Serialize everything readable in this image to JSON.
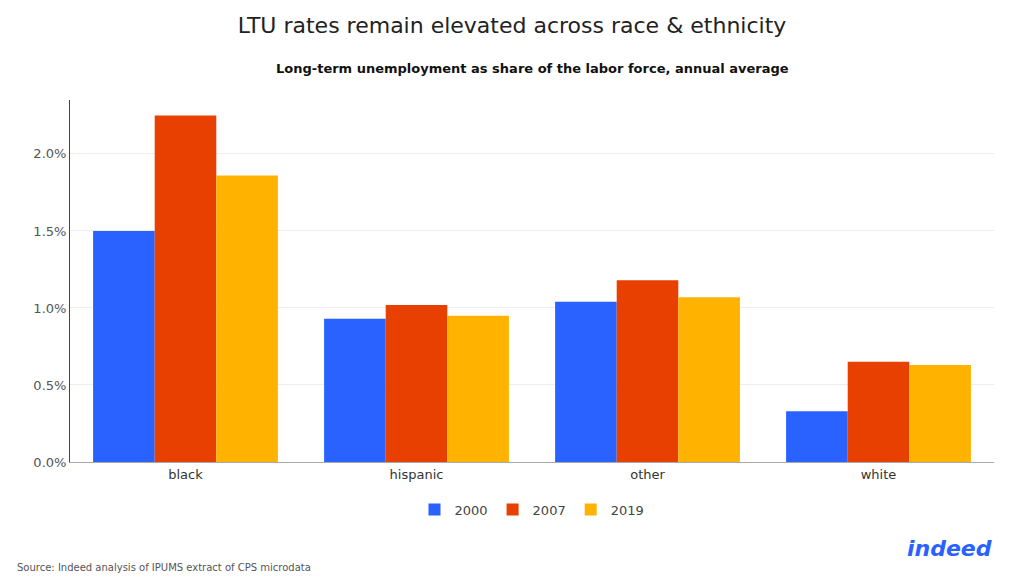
{
  "chart_data": {
    "type": "bar",
    "title": "LTU rates remain elevated across race & ethnicity",
    "subtitle": "Long-term unemployment as share of the labor force, annual average",
    "categories": [
      "black",
      "hispanic",
      "other",
      "white"
    ],
    "series": [
      {
        "name": "2000",
        "color": "#2962FF",
        "values": [
          0.015,
          0.0093,
          0.0104,
          0.0033
        ]
      },
      {
        "name": "2007",
        "color": "#E84000",
        "values": [
          0.0225,
          0.0102,
          0.0118,
          0.0065
        ]
      },
      {
        "name": "2019",
        "color": "#FFB300",
        "values": [
          0.0186,
          0.0095,
          0.0107,
          0.0063
        ]
      }
    ],
    "ylim": [
      0,
      0.0235
    ],
    "yticks": [
      {
        "value": 0.0,
        "label": "0.0%"
      },
      {
        "value": 0.005,
        "label": "0.5%"
      },
      {
        "value": 0.01,
        "label": "1.0%"
      },
      {
        "value": 0.015,
        "label": "1.5%"
      },
      {
        "value": 0.02,
        "label": "2.0%"
      }
    ],
    "grid": true,
    "legend": "bottom",
    "annotations": [
      {
        "text": "Source: Indeed analysis of IPUMS extract of CPS microdata"
      },
      {
        "text": "indeed",
        "color": "#2962FF"
      }
    ]
  }
}
